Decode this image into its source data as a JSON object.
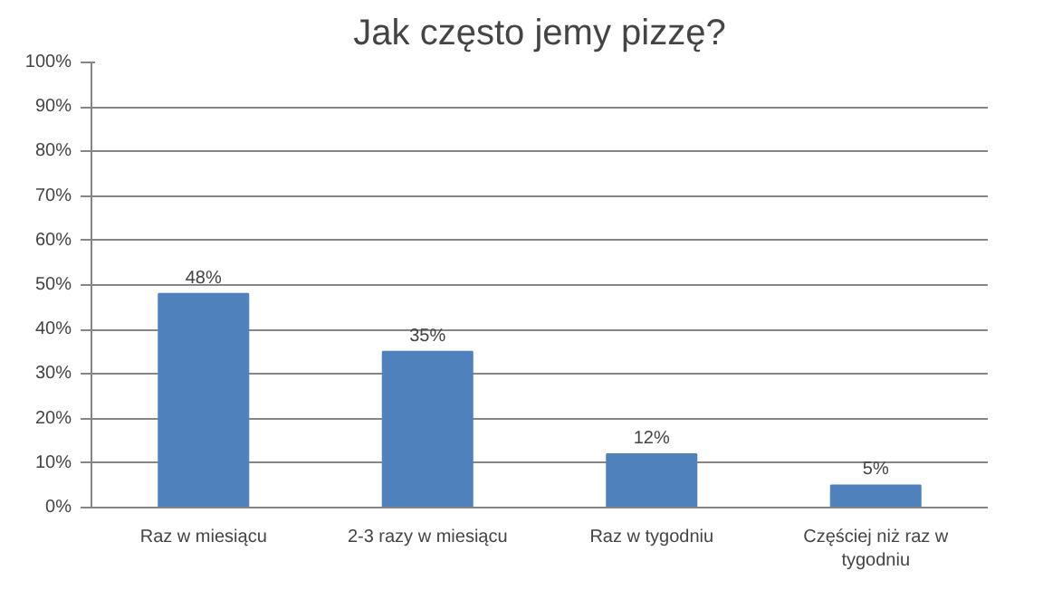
{
  "chart_data": {
    "type": "bar",
    "title": "Jak często jemy pizzę?",
    "categories": [
      "Raz w miesiącu",
      "2-3 razy w miesiącu",
      "Raz w tygodniu",
      "Częściej niż raz w tygodniu"
    ],
    "values": [
      48,
      35,
      12,
      5
    ],
    "value_labels": [
      "48%",
      "35%",
      "12%",
      "5%"
    ],
    "color": "#4f81bd",
    "ylim": [
      0,
      100
    ],
    "yticks": [
      {
        "value": 0,
        "label": "0%"
      },
      {
        "value": 10,
        "label": "10%"
      },
      {
        "value": 20,
        "label": "20%"
      },
      {
        "value": 30,
        "label": "30%"
      },
      {
        "value": 40,
        "label": "40%"
      },
      {
        "value": 50,
        "label": "50%"
      },
      {
        "value": 60,
        "label": "60%"
      },
      {
        "value": 70,
        "label": "70%"
      },
      {
        "value": 80,
        "label": "80%"
      },
      {
        "value": 90,
        "label": "90%"
      },
      {
        "value": 100,
        "label": "100%"
      }
    ],
    "grid": "y"
  }
}
